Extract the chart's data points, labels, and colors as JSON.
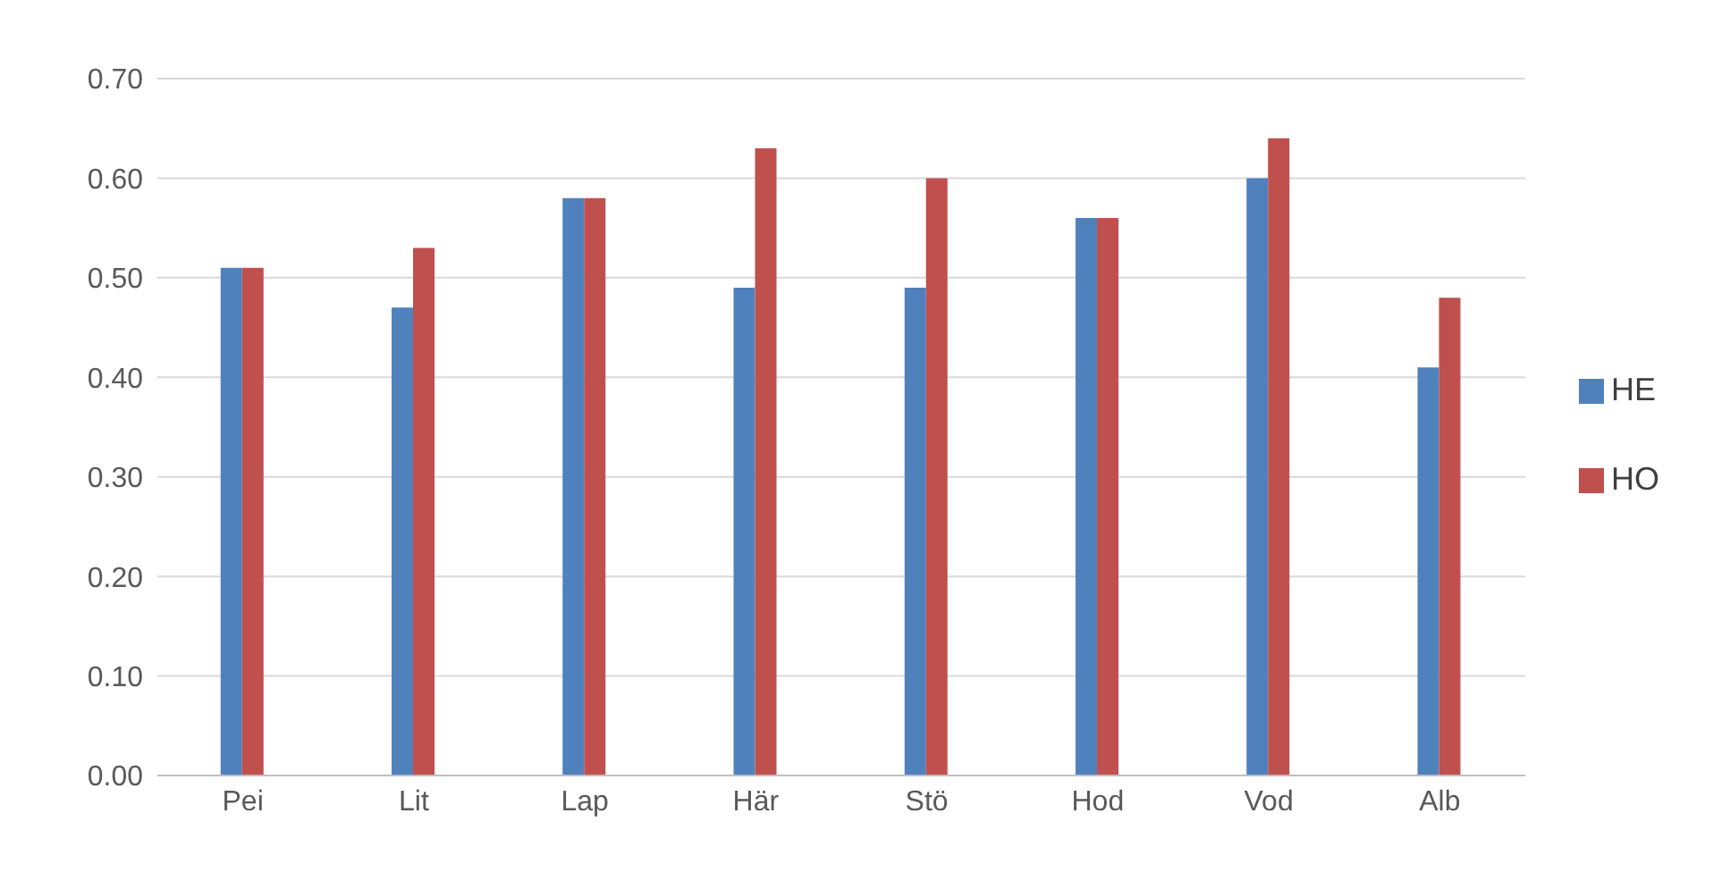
{
  "chart_data": {
    "type": "bar",
    "categories": [
      "Pei",
      "Lit",
      "Lap",
      "Här",
      "Stö",
      "Hod",
      "Vod",
      "Alb"
    ],
    "series": [
      {
        "name": "HE",
        "color": "#4f81bd",
        "values": [
          0.51,
          0.47,
          0.58,
          0.49,
          0.49,
          0.56,
          0.6,
          0.41
        ]
      },
      {
        "name": "HO",
        "color": "#c0504d",
        "values": [
          0.51,
          0.53,
          0.58,
          0.63,
          0.6,
          0.56,
          0.64,
          0.48
        ]
      }
    ],
    "ylim": [
      0,
      0.7
    ],
    "yticks": [
      {
        "value": 0,
        "label": "0.00"
      },
      {
        "value": 0.1,
        "label": "0.10"
      },
      {
        "value": 0.2,
        "label": "0.20"
      },
      {
        "value": 0.3,
        "label": "0.30"
      },
      {
        "value": 0.4,
        "label": "0.40"
      },
      {
        "value": 0.5,
        "label": "0.50"
      },
      {
        "value": 0.6,
        "label": "0.60"
      },
      {
        "value": 0.7,
        "label": "0.70"
      }
    ],
    "grid": "y",
    "legend": "right"
  }
}
